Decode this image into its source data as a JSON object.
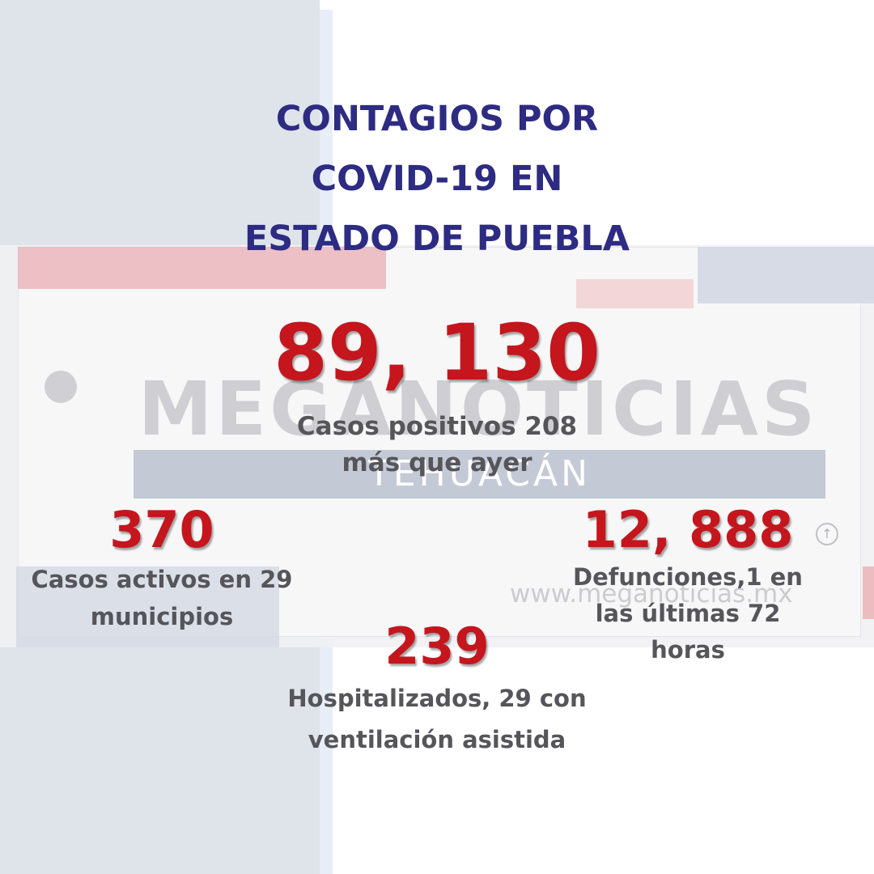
{
  "title": "CONTAGIOS POR\nCOVID-19 EN\nESTADO DE PUEBLA",
  "watermark": {
    "brand": "MEGANOTICIAS",
    "city": "TEHUACÁN",
    "url": "www.meganoticias.mx"
  },
  "stats": {
    "positive": {
      "value": "89, 130",
      "label": "Casos positivos 208\nmás que ayer"
    },
    "active": {
      "value": "370",
      "label": "Casos activos en 29\nmunicipios"
    },
    "deaths": {
      "value": "12, 888",
      "label": "Defunciones,1 en\nlas últimas 72\nhoras"
    },
    "hospitalized": {
      "value": "239",
      "label": "Hospitalizados, 29 con\nventilación asistida"
    }
  },
  "colors": {
    "title": "#2d2b82",
    "number": "#c4161c",
    "label": "#55555a"
  }
}
